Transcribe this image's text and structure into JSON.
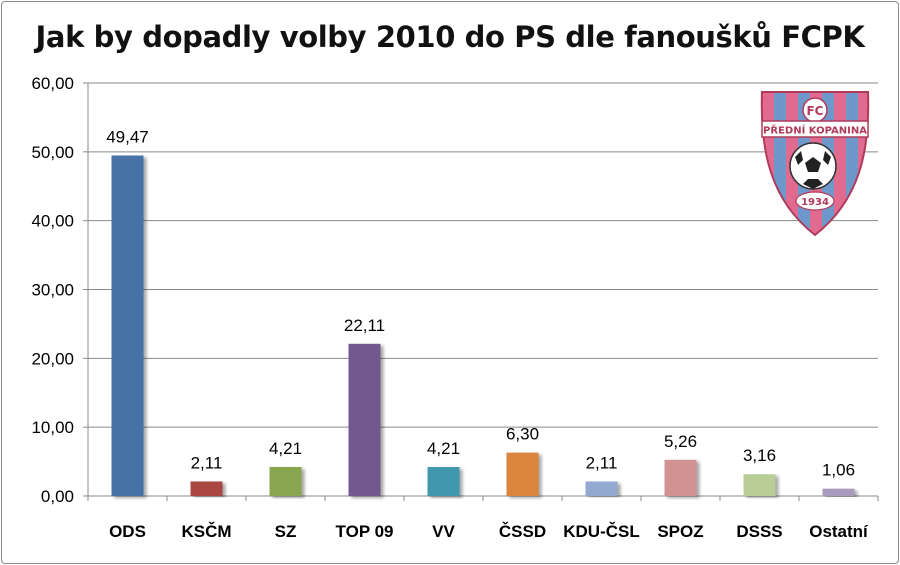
{
  "chart_data": {
    "type": "bar",
    "title": "Jak by dopadly volby 2010 do PS dle fanoušků FCPK",
    "xlabel": "",
    "ylabel": "",
    "categories": [
      "ODS",
      "KSČM",
      "SZ",
      "TOP 09",
      "VV",
      "ČSSD",
      "KDU-ČSL",
      "SPOZ",
      "DSSS",
      "Ostatní"
    ],
    "values": [
      49.47,
      2.11,
      4.21,
      22.11,
      4.21,
      6.3,
      2.11,
      5.26,
      3.16,
      1.06
    ],
    "value_labels": [
      "49,47",
      "2,11",
      "4,21",
      "22,11",
      "4,21",
      "6,30",
      "2,11",
      "5,26",
      "3,16",
      "1,06"
    ],
    "colors": [
      "#4672a8",
      "#aa4643",
      "#89a54e",
      "#71588f",
      "#4198af",
      "#db843d",
      "#93a9cf",
      "#d19392",
      "#b9cd96",
      "#a99bbd"
    ],
    "ylim": [
      0,
      60
    ],
    "yticks": [
      0,
      10,
      20,
      30,
      40,
      50,
      60
    ],
    "ytick_labels": [
      "0,00",
      "10,00",
      "20,00",
      "30,00",
      "40,00",
      "50,00",
      "60,00"
    ],
    "grid": true,
    "legend": "none"
  },
  "logo": {
    "top_text": "FC",
    "name": "PŘEDNÍ KOPANINA",
    "year": "1934",
    "colors": {
      "pink": "#e06b8f",
      "blue": "#6e98cc",
      "outline": "#b03a5a"
    }
  }
}
